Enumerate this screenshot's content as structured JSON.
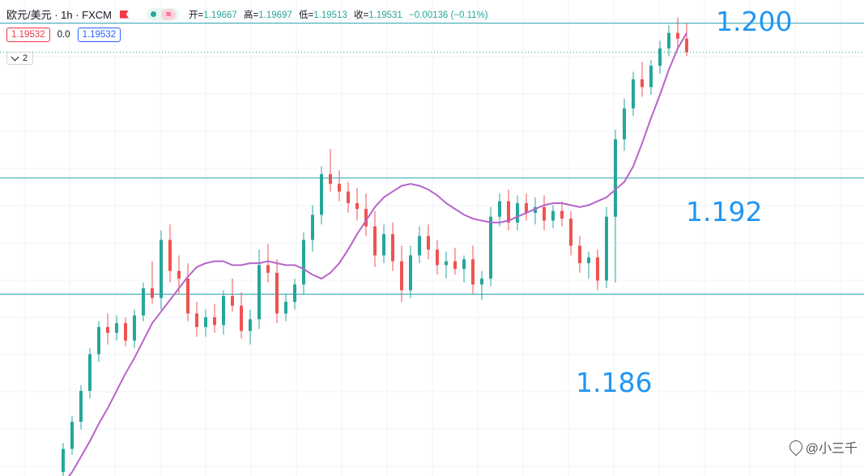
{
  "header": {
    "symbol": "欧元/美元 · 1h · FXCM",
    "wave_icon": "≈",
    "ohlc": {
      "open_label": "开=",
      "open": "1.19667",
      "high_label": "高=",
      "high": "1.19697",
      "low_label": "低=",
      "low": "1.19513",
      "close_label": "收=",
      "close": "1.19531",
      "change": "−0.00136 (−0.11%)"
    }
  },
  "trade": {
    "sell": "1.19532",
    "spread": "0.0",
    "buy": "1.19532"
  },
  "indicators_toggle": "2",
  "levels": [
    {
      "label": "1.200",
      "price": 1.2
    },
    {
      "label": "1.192",
      "price": 1.192
    },
    {
      "label": "1.186",
      "price": 1.186
    }
  ],
  "watermark": "@小三千",
  "colors": {
    "up": "#26a69a",
    "down": "#ef5350",
    "ma": "#b764c9",
    "level": "#2196f3",
    "accent": "#2962ff"
  },
  "chart_data": {
    "type": "candlestick",
    "ylim": [
      1.1766,
      1.2012
    ],
    "ma_values": [
      1.1762,
      1.1768,
      1.1776,
      1.1784,
      1.1793,
      1.1801,
      1.181,
      1.1819,
      1.1827,
      1.1836,
      1.1845,
      1.1851,
      1.1857,
      1.1863,
      1.1869,
      1.1874,
      1.1876,
      1.1877,
      1.1877,
      1.1875,
      1.1875,
      1.1876,
      1.1876,
      1.1877,
      1.1876,
      1.1875,
      1.1875,
      1.1873,
      1.187,
      1.1868,
      1.1871,
      1.1876,
      1.1883,
      1.1891,
      1.1898,
      1.1905,
      1.191,
      1.1913,
      1.1916,
      1.1917,
      1.1916,
      1.1914,
      1.1911,
      1.1907,
      1.1904,
      1.1901,
      1.1899,
      1.1898,
      1.1897,
      1.1897,
      1.1898,
      1.19,
      1.1902,
      1.1904,
      1.1906,
      1.1907,
      1.1907,
      1.1906,
      1.1905,
      1.1906,
      1.1908,
      1.191,
      1.1914,
      1.1918,
      1.1926,
      1.1938,
      1.1951,
      1.1963,
      1.1976,
      1.1987,
      1.1995
    ],
    "candles": [
      [
        1.1768,
        1.1783,
        1.1765,
        1.178
      ],
      [
        1.178,
        1.1797,
        1.1777,
        1.1794
      ],
      [
        1.1794,
        1.1813,
        1.179,
        1.181
      ],
      [
        1.181,
        1.1832,
        1.1806,
        1.1829
      ],
      [
        1.1829,
        1.1846,
        1.1825,
        1.1843
      ],
      [
        1.1843,
        1.185,
        1.1834,
        1.184
      ],
      [
        1.184,
        1.1849,
        1.1836,
        1.1845
      ],
      [
        1.1845,
        1.1848,
        1.1833,
        1.1836
      ],
      [
        1.1836,
        1.1852,
        1.1832,
        1.1849
      ],
      [
        1.1849,
        1.1866,
        1.1846,
        1.1863
      ],
      [
        1.1863,
        1.1877,
        1.1855,
        1.1858
      ],
      [
        1.1858,
        1.1893,
        1.1852,
        1.1888
      ],
      [
        1.1888,
        1.1896,
        1.1866,
        1.1872
      ],
      [
        1.1872,
        1.188,
        1.186,
        1.1868
      ],
      [
        1.1868,
        1.1876,
        1.1846,
        1.185
      ],
      [
        1.185,
        1.1856,
        1.1838,
        1.1843
      ],
      [
        1.1843,
        1.1852,
        1.1838,
        1.1848
      ],
      [
        1.1848,
        1.1855,
        1.184,
        1.1844
      ],
      [
        1.1844,
        1.1862,
        1.1839,
        1.1859
      ],
      [
        1.1859,
        1.1868,
        1.1851,
        1.1854
      ],
      [
        1.1854,
        1.1861,
        1.1837,
        1.1841
      ],
      [
        1.1841,
        1.1852,
        1.1834,
        1.1847
      ],
      [
        1.1847,
        1.1883,
        1.1842,
        1.1875
      ],
      [
        1.1875,
        1.1886,
        1.1866,
        1.1871
      ],
      [
        1.1871,
        1.1878,
        1.1845,
        1.185
      ],
      [
        1.185,
        1.186,
        1.1846,
        1.1856
      ],
      [
        1.1856,
        1.1868,
        1.1852,
        1.1865
      ],
      [
        1.1865,
        1.1892,
        1.186,
        1.1888
      ],
      [
        1.1888,
        1.1906,
        1.1882,
        1.1901
      ],
      [
        1.1901,
        1.1926,
        1.1896,
        1.1922
      ],
      [
        1.1922,
        1.1935,
        1.1913,
        1.1917
      ],
      [
        1.1917,
        1.1924,
        1.1908,
        1.1913
      ],
      [
        1.1913,
        1.1918,
        1.1902,
        1.1907
      ],
      [
        1.1907,
        1.1915,
        1.1898,
        1.1904
      ],
      [
        1.1904,
        1.1912,
        1.189,
        1.1895
      ],
      [
        1.1895,
        1.1903,
        1.1874,
        1.188
      ],
      [
        1.188,
        1.1896,
        1.1876,
        1.1891
      ],
      [
        1.1891,
        1.1897,
        1.1872,
        1.1877
      ],
      [
        1.1877,
        1.1885,
        1.1856,
        1.1862
      ],
      [
        1.1862,
        1.1885,
        1.1858,
        1.188
      ],
      [
        1.188,
        1.1895,
        1.1876,
        1.189
      ],
      [
        1.189,
        1.1896,
        1.1878,
        1.1883
      ],
      [
        1.1883,
        1.1888,
        1.187,
        1.1875
      ],
      [
        1.1875,
        1.1882,
        1.1868,
        1.1877
      ],
      [
        1.1877,
        1.1884,
        1.187,
        1.1873
      ],
      [
        1.1873,
        1.188,
        1.1866,
        1.1878
      ],
      [
        1.1878,
        1.1885,
        1.186,
        1.1865
      ],
      [
        1.1865,
        1.1872,
        1.1857,
        1.1868
      ],
      [
        1.1868,
        1.1905,
        1.1864,
        1.19
      ],
      [
        1.19,
        1.1912,
        1.1895,
        1.1908
      ],
      [
        1.1908,
        1.1914,
        1.1893,
        1.1897
      ],
      [
        1.1897,
        1.1911,
        1.1893,
        1.1907
      ],
      [
        1.1907,
        1.1912,
        1.1898,
        1.1902
      ],
      [
        1.1902,
        1.191,
        1.1896,
        1.1905
      ],
      [
        1.1905,
        1.1911,
        1.1893,
        1.1898
      ],
      [
        1.1898,
        1.1906,
        1.1894,
        1.1903
      ],
      [
        1.1903,
        1.1908,
        1.1895,
        1.1899
      ],
      [
        1.1899,
        1.1903,
        1.188,
        1.1885
      ],
      [
        1.1885,
        1.189,
        1.1871,
        1.1876
      ],
      [
        1.1876,
        1.1882,
        1.1868,
        1.1879
      ],
      [
        1.1879,
        1.1883,
        1.1862,
        1.1867
      ],
      [
        1.1867,
        1.1905,
        1.1863,
        1.19
      ],
      [
        1.19,
        1.1945,
        1.1866,
        1.194
      ],
      [
        1.194,
        1.1961,
        1.1934,
        1.1956
      ],
      [
        1.1956,
        1.1975,
        1.1952,
        1.1971
      ],
      [
        1.1971,
        1.198,
        1.1962,
        1.1967
      ],
      [
        1.1967,
        1.1981,
        1.1963,
        1.1978
      ],
      [
        1.1978,
        1.1991,
        1.1974,
        1.1987
      ],
      [
        1.1987,
        1.1999,
        1.1983,
        1.1995
      ],
      [
        1.1995,
        1.2003,
        1.1987,
        1.1992
      ],
      [
        1.1992,
        1.2,
        1.1983,
        1.1985
      ]
    ]
  }
}
